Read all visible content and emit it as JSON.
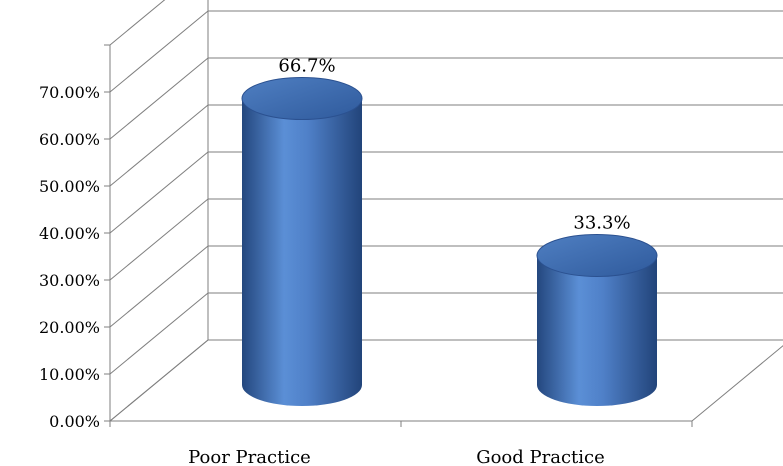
{
  "chart_data": {
    "type": "bar",
    "style": "3d-cylinder",
    "categories": [
      "Poor Practice",
      "Good Practice"
    ],
    "values": [
      66.7,
      33.3
    ],
    "data_labels": [
      "66.7%",
      "33.3%"
    ],
    "yticks": [
      "0.00%",
      "10.00%",
      "20.00%",
      "30.00%",
      "40.00%",
      "50.00%",
      "60.00%",
      "70.00%"
    ],
    "ylim": [
      0,
      80
    ],
    "grid": true,
    "legend": "none",
    "bar_color": "#4472C4",
    "title": "",
    "xlabel": "",
    "ylabel": ""
  }
}
